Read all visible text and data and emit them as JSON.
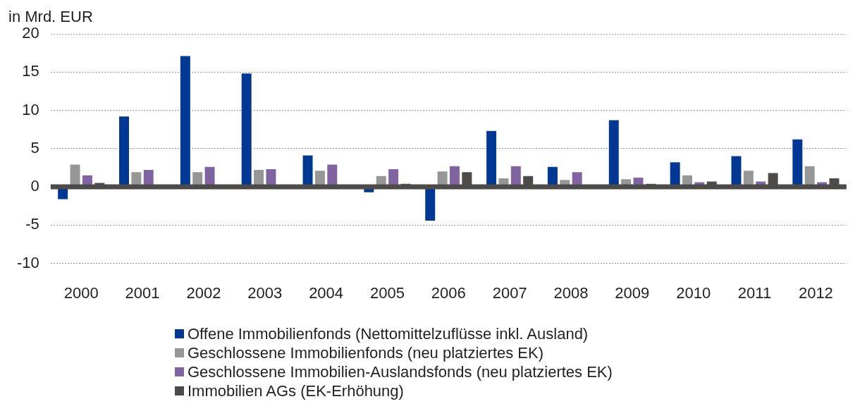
{
  "chart_data": {
    "type": "bar",
    "ylabel": "in Mrd. EUR",
    "categories": [
      "2000",
      "2001",
      "2002",
      "2003",
      "2004",
      "2005",
      "2006",
      "2007",
      "2008",
      "2009",
      "2010",
      "2011",
      "2012"
    ],
    "series": [
      {
        "name": "Offene Immobilienfonds (Nettomittelzuflüsse inkl. Ausland)",
        "color": "#003893",
        "values": [
          -1.7,
          9.3,
          17.2,
          14.9,
          4.2,
          -0.8,
          -4.5,
          7.4,
          2.7,
          8.8,
          3.3,
          4.1,
          6.3
        ]
      },
      {
        "name": "Geschlossene Immobilienfonds (neu platziertes EK)",
        "color": "#969696",
        "values": [
          3.0,
          2.0,
          2.0,
          2.3,
          2.2,
          1.5,
          2.1,
          1.2,
          1.0,
          1.1,
          1.6,
          2.2,
          2.8
        ]
      },
      {
        "name": "Geschlossene Immobilien-Auslandsfonds (neu platziertes EK)",
        "color": "#8064a2",
        "values": [
          1.6,
          2.3,
          2.7,
          2.4,
          3.0,
          2.4,
          2.8,
          2.8,
          2.0,
          1.3,
          0.7,
          0.8,
          0.7
        ]
      },
      {
        "name": "Immobilien AGs (EK-Erhöhung)",
        "color": "#4d4a4a",
        "values": [
          0.6,
          null,
          null,
          null,
          null,
          0.5,
          2.0,
          1.5,
          null,
          0.5,
          0.8,
          1.9,
          1.2
        ]
      }
    ],
    "ylim": [
      -10,
      20
    ],
    "yticks": [
      -10,
      -5,
      0,
      5,
      10,
      15,
      20
    ],
    "grid": "y",
    "legend": "bottom",
    "ref_lines": [
      {
        "axis": "y",
        "value": 0,
        "color": "#4d4a4a"
      }
    ]
  }
}
